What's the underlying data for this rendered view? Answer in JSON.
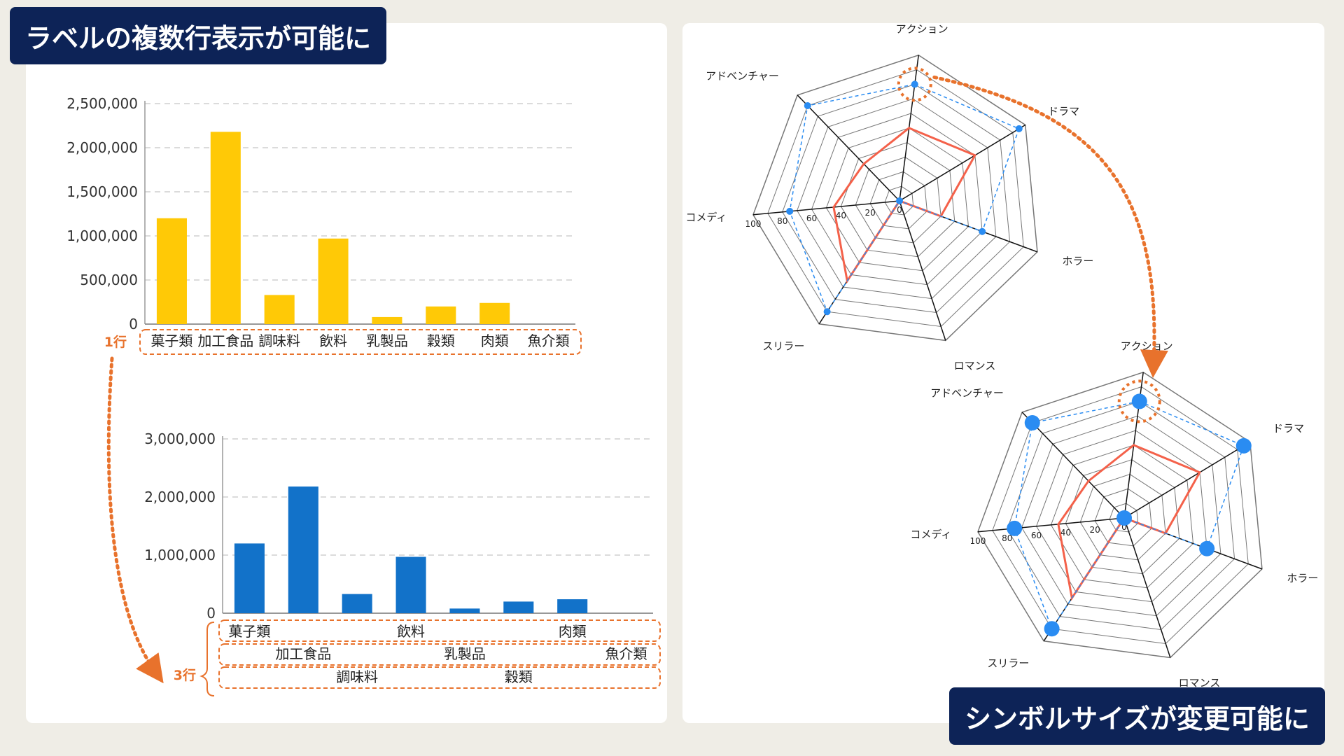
{
  "banners": {
    "top_left": "ラベルの複数行表示が可能に",
    "bottom_right": "シンボルサイズが変更可能に"
  },
  "annotations": {
    "one_line": "1行",
    "three_lines": "3行"
  },
  "colors": {
    "bar_yellow": "#ffc906",
    "bar_blue": "#1272c9",
    "radar_red": "#f4614a",
    "radar_blue": "#2a8cf2",
    "annotation_orange": "#e8722c",
    "banner_navy": "#0d2357"
  },
  "chart_data": [
    {
      "type": "bar",
      "categories": [
        "菓子類",
        "加工食品",
        "調味料",
        "飲料",
        "乳製品",
        "穀類",
        "肉類",
        "魚介類"
      ],
      "values": [
        1200000,
        2180000,
        330000,
        970000,
        80000,
        200000,
        240000,
        0
      ],
      "ylim": [
        0,
        2500000
      ],
      "yticks": [
        "0",
        "500,000",
        "1,000,000",
        "1,500,000",
        "2,000,000",
        "2,500,000"
      ],
      "label_rows": 1,
      "grid": true
    },
    {
      "type": "bar",
      "categories": [
        "菓子類",
        "加工食品",
        "調味料",
        "飲料",
        "乳製品",
        "穀類",
        "肉類",
        "魚介類"
      ],
      "values": [
        1200000,
        2180000,
        330000,
        970000,
        80000,
        200000,
        240000,
        0
      ],
      "ylim": [
        0,
        3000000
      ],
      "yticks": [
        "0",
        "1,000,000",
        "2,000,000",
        "3,000,000"
      ],
      "label_rows": 3,
      "grid": true
    },
    {
      "type": "radar",
      "axes": [
        "アクション",
        "ドラマ",
        "ホラー",
        "ロマンス",
        "スリラー",
        "コメディ",
        "アドベンチャー"
      ],
      "rlim": [
        0,
        100
      ],
      "rticks": [
        "0",
        "20",
        "40",
        "60",
        "80",
        "100"
      ],
      "series": [
        {
          "values": [
            50,
            60,
            30,
            0,
            65,
            45,
            35
          ]
        },
        {
          "values": [
            80,
            95,
            60,
            0,
            90,
            75,
            90
          ]
        }
      ],
      "symbol_size": "small"
    },
    {
      "type": "radar",
      "axes": [
        "アクション",
        "ドラマ",
        "ホラー",
        "ロマンス",
        "スリラー",
        "コメディ",
        "アドベンチャー"
      ],
      "rlim": [
        0,
        100
      ],
      "rticks": [
        "0",
        "20",
        "40",
        "60",
        "80",
        "100"
      ],
      "series": [
        {
          "values": [
            50,
            60,
            30,
            0,
            65,
            45,
            35
          ]
        },
        {
          "values": [
            80,
            95,
            60,
            0,
            90,
            75,
            90
          ]
        }
      ],
      "symbol_size": "large"
    }
  ]
}
